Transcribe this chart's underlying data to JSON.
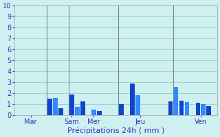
{
  "xlabel": "Précipitations 24h ( mm )",
  "ylim": [
    0,
    10
  ],
  "yticks": [
    0,
    1,
    2,
    3,
    4,
    5,
    6,
    7,
    8,
    9,
    10
  ],
  "background_color": "#cef0f0",
  "plot_bg_color": "#cef0f0",
  "bar_color_dark": "#1144cc",
  "bar_color_light": "#3388ff",
  "grid_color": "#99cccc",
  "bar_values": [
    0,
    0,
    0,
    0,
    0,
    0,
    1.5,
    1.6,
    0.65,
    0,
    1.9,
    0.75,
    1.3,
    0,
    0.55,
    0.4,
    0,
    0,
    0,
    1.0,
    0,
    2.9,
    1.85,
    0,
    0,
    0,
    0,
    0,
    1.3,
    2.6,
    1.35,
    1.2,
    0,
    1.15,
    1.0,
    0.85,
    0
  ],
  "bar_colors": [
    "dark",
    "dark",
    "dark",
    "dark",
    "dark",
    "dark",
    "dark",
    "light",
    "dark",
    "dark",
    "dark",
    "light",
    "dark",
    "dark",
    "light",
    "dark",
    "dark",
    "dark",
    "dark",
    "dark",
    "dark",
    "dark",
    "light",
    "dark",
    "dark",
    "dark",
    "dark",
    "dark",
    "dark",
    "light",
    "dark",
    "light",
    "dark",
    "dark",
    "light",
    "dark",
    "dark"
  ],
  "day_tick_positions": [
    2.5,
    10.0,
    14.0,
    22.5,
    33.5
  ],
  "day_labels": [
    "Mar",
    "Sam",
    "Mer",
    "Jeu",
    "Ven"
  ],
  "vline_positions": [
    5.5,
    9.5,
    18.5,
    28.5
  ],
  "tick_fontsize": 7,
  "label_fontsize": 8,
  "vline_color": "#778899"
}
